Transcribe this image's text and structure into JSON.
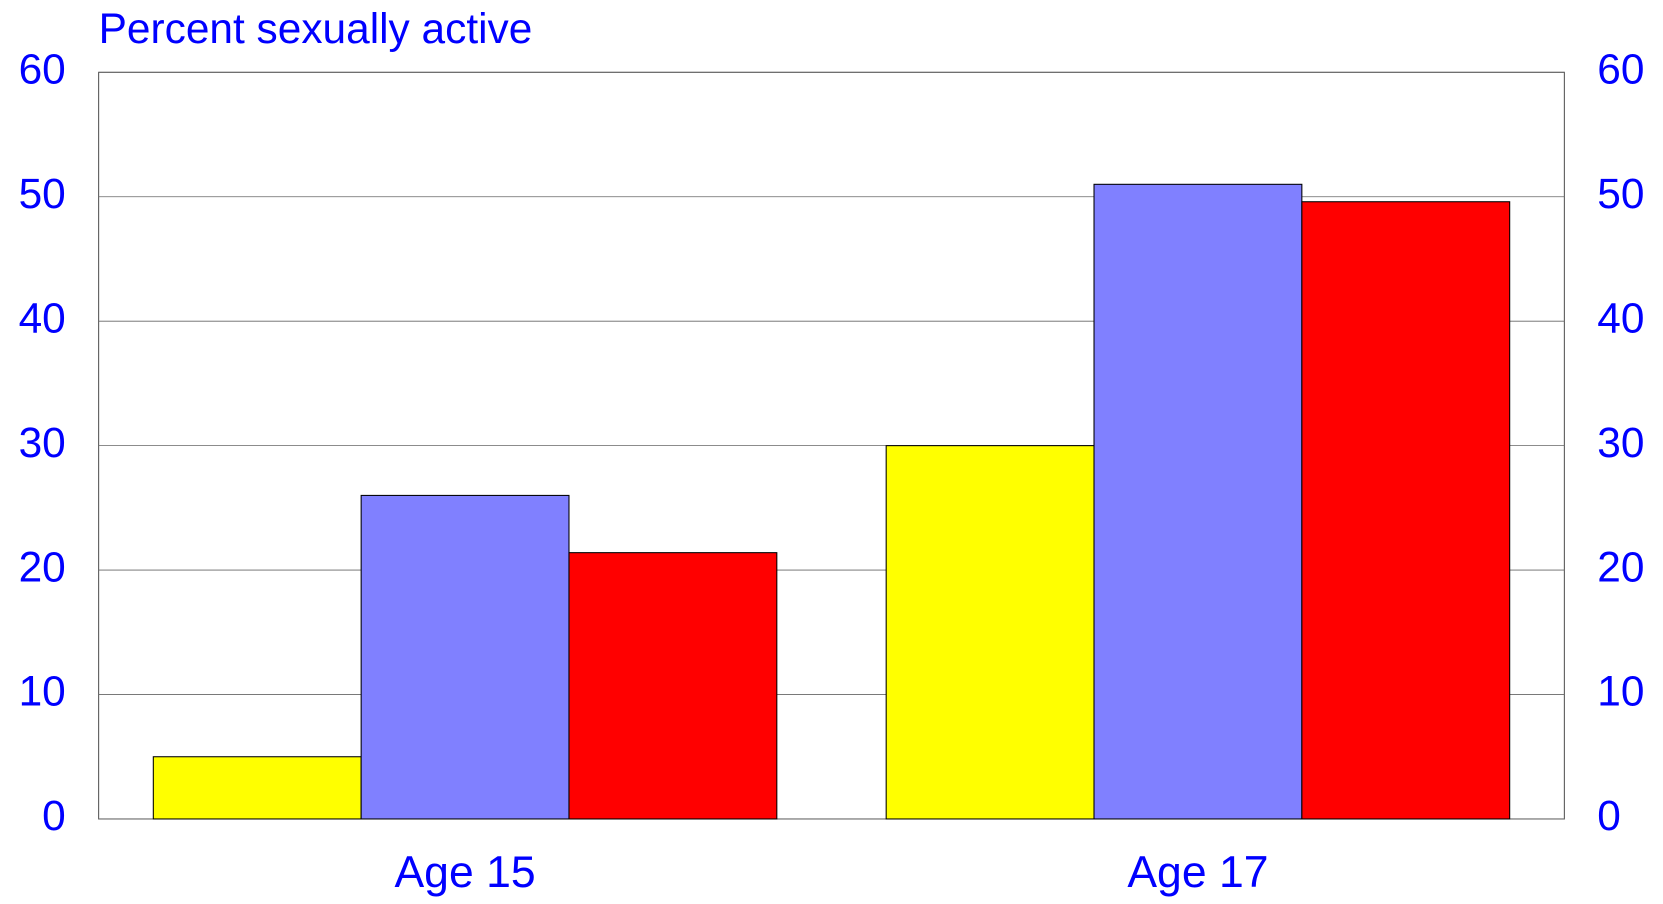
{
  "chart_data": {
    "type": "bar",
    "title": "Percent sexually active",
    "categories": [
      "Age 15",
      "Age 17"
    ],
    "series": [
      {
        "color": "#ffff00",
        "values": [
          5,
          30
        ]
      },
      {
        "color": "#8080ff",
        "values": [
          26,
          51
        ]
      },
      {
        "color": "#ff0000",
        "values": [
          21.4,
          49.6
        ]
      }
    ],
    "ylim": [
      0,
      60
    ],
    "yticks": [
      0,
      10,
      20,
      30,
      40,
      50,
      60
    ],
    "grid": true
  }
}
